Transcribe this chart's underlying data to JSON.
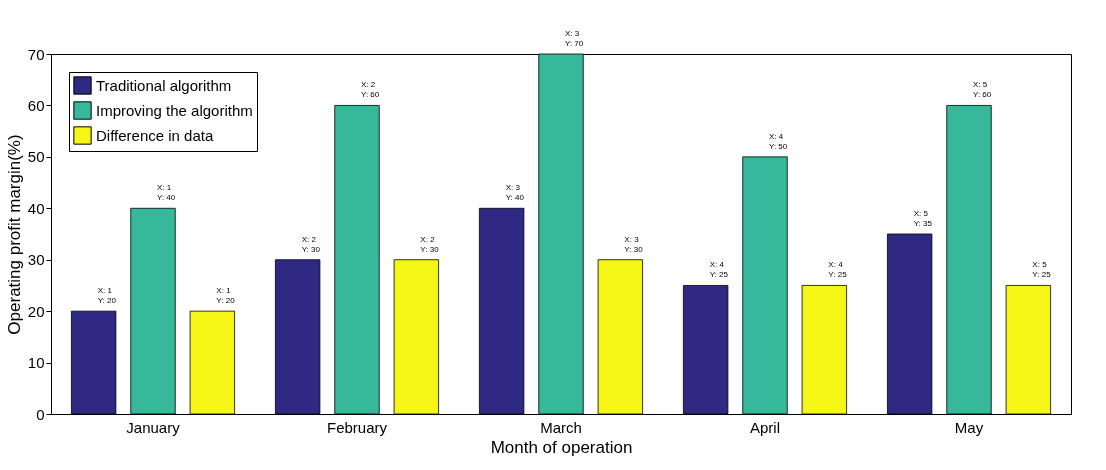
{
  "chart_data": {
    "type": "bar",
    "xlabel": "Month of operation",
    "ylabel": "Operating profit margin(%)",
    "categories": [
      "January",
      "February",
      "March",
      "April",
      "May"
    ],
    "series": [
      {
        "name": "Traditional algorithm",
        "color": "#2e2a83",
        "values": [
          20,
          30,
          40,
          25,
          35
        ],
        "value_labels": [
          "X: 1\nY: 20",
          "X: 2\nY: 30",
          "X: 3\nY: 40",
          "X: 4\nY: 25",
          "X: 5\nY: 35"
        ]
      },
      {
        "name": "Improving the algorithm",
        "color": "#36b89a",
        "values": [
          40,
          60,
          70,
          50,
          60
        ],
        "value_labels": [
          "X: 1\nY: 40",
          "X: 2\nY: 60",
          "X: 3\nY: 70",
          "X: 4\nY: 50",
          "X: 5\nY: 60"
        ]
      },
      {
        "name": "Difference in data",
        "color": "#f5f516",
        "values": [
          20,
          30,
          30,
          25,
          25
        ],
        "value_labels": [
          "X: 1\nY: 20",
          "X: 2\nY: 30",
          "X: 3\nY: 30",
          "X: 4\nY: 25",
          "X: 5\nY: 25"
        ]
      }
    ],
    "ylim": [
      0,
      70
    ],
    "yticks": [
      0,
      10,
      20,
      30,
      40,
      50,
      60,
      70
    ],
    "grid": false,
    "legend": "top left"
  }
}
